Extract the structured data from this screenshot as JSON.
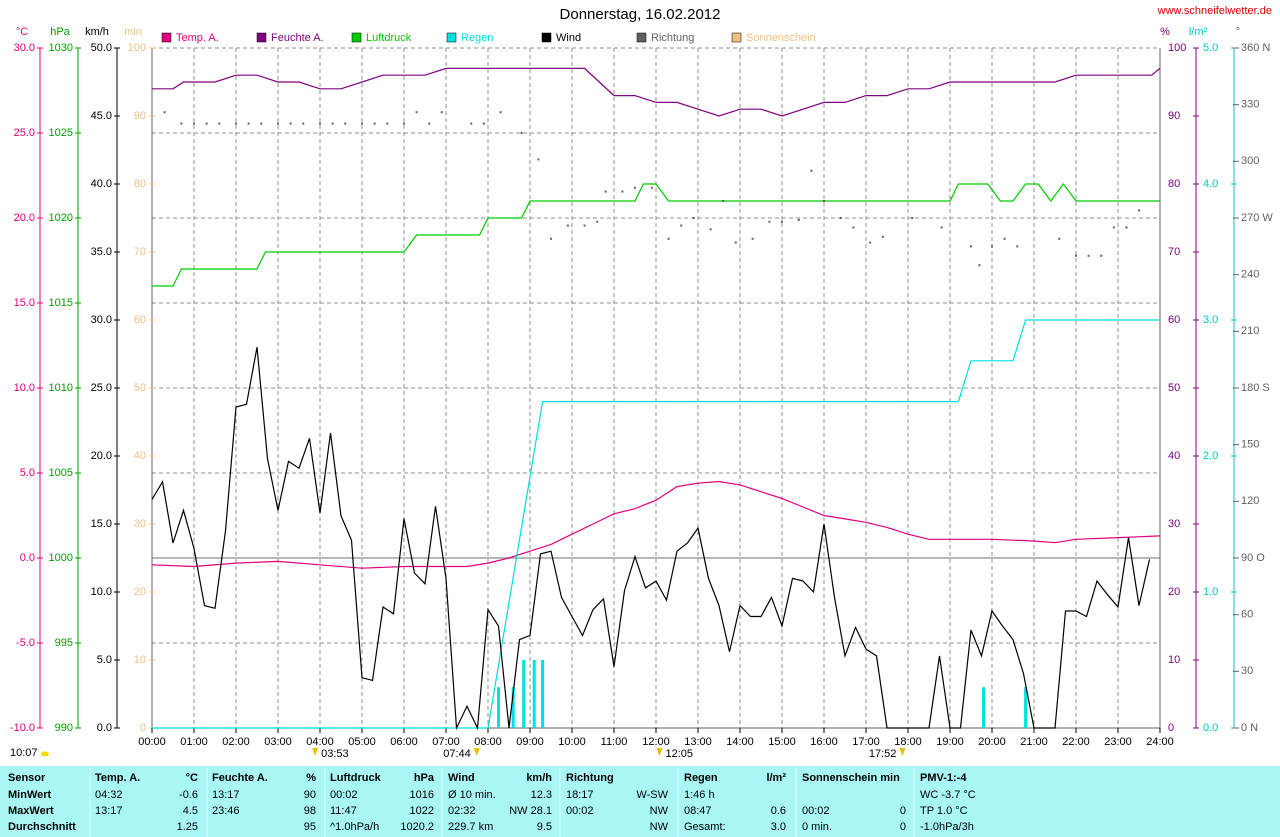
{
  "chart_data": {
    "type": "line",
    "title": "Donnerstag, 16.02.2012",
    "source": "www.schneifelwetter.de",
    "update_time": "10:07",
    "xlim": [
      0,
      24
    ],
    "xticks": [
      {
        "value": 0,
        "label": "00:00"
      },
      {
        "value": 1,
        "label": "01:00"
      },
      {
        "value": 2,
        "label": "02:00"
      },
      {
        "value": 3,
        "label": "03:00"
      },
      {
        "value": 4,
        "label": "04:00"
      },
      {
        "value": 5,
        "label": "05:00"
      },
      {
        "value": 6,
        "label": "06:00"
      },
      {
        "value": 7,
        "label": "07:00"
      },
      {
        "value": 8,
        "label": "08:00"
      },
      {
        "value": 9,
        "label": "09:00"
      },
      {
        "value": 10,
        "label": "10:00"
      },
      {
        "value": 11,
        "label": "11:00"
      },
      {
        "value": 12,
        "label": "12:00"
      },
      {
        "value": 13,
        "label": "13:00"
      },
      {
        "value": 14,
        "label": "14:00"
      },
      {
        "value": 15,
        "label": "15:00"
      },
      {
        "value": 16,
        "label": "16:00"
      },
      {
        "value": 17,
        "label": "17:00"
      },
      {
        "value": 18,
        "label": "18:00"
      },
      {
        "value": 19,
        "label": "19:00"
      },
      {
        "value": 20,
        "label": "20:00"
      },
      {
        "value": 21,
        "label": "21:00"
      },
      {
        "value": 22,
        "label": "22:00"
      },
      {
        "value": 23,
        "label": "23:00"
      },
      {
        "value": 24,
        "label": "24:00"
      }
    ],
    "grid": true,
    "y_axes": [
      {
        "unit": "°C",
        "color": "#e0007f",
        "ylim": [
          -10,
          30
        ],
        "yticks": [
          {
            "value": -10,
            "label": "-10.0"
          },
          {
            "value": -5,
            "label": "-5.0"
          },
          {
            "value": 0,
            "label": "0.0"
          },
          {
            "value": 5,
            "label": "5.0"
          },
          {
            "value": 10,
            "label": "10.0"
          },
          {
            "value": 15,
            "label": "15.0"
          },
          {
            "value": 20,
            "label": "20.0"
          },
          {
            "value": 25,
            "label": "25.0"
          },
          {
            "value": 30,
            "label": "30.0"
          }
        ]
      },
      {
        "unit": "hPa",
        "color": "#00a000",
        "ylim": [
          990,
          1030
        ],
        "yticks": [
          990,
          995,
          1000,
          1005,
          1010,
          1015,
          1020,
          1025,
          1030
        ]
      },
      {
        "unit": "km/h",
        "color": "#000000",
        "ylim": [
          0,
          50
        ],
        "yticks": [
          {
            "value": 0,
            "label": "0.0"
          },
          {
            "value": 5,
            "label": "5.0"
          },
          {
            "value": 10,
            "label": "10.0"
          },
          {
            "value": 15,
            "label": "15.0"
          },
          {
            "value": 20,
            "label": "20.0"
          },
          {
            "value": 25,
            "label": "25.0"
          },
          {
            "value": 30,
            "label": "30.0"
          },
          {
            "value": 35,
            "label": "35.0"
          },
          {
            "value": 40,
            "label": "40.0"
          },
          {
            "value": 45,
            "label": "45.0"
          },
          {
            "value": 50,
            "label": "50.0"
          }
        ]
      },
      {
        "unit": "min",
        "color": "#f0c080",
        "ylim": [
          0,
          100
        ],
        "yticks": [
          0,
          10,
          20,
          30,
          40,
          50,
          60,
          70,
          80,
          90,
          100
        ]
      },
      {
        "unit": "%",
        "color": "#800080",
        "ylim": [
          0,
          100
        ],
        "yticks": [
          0,
          10,
          20,
          30,
          40,
          50,
          60,
          70,
          80,
          90,
          100
        ]
      },
      {
        "unit": "l/m²",
        "color": "#00c8c8",
        "ylim": [
          0,
          5
        ],
        "yticks": [
          {
            "value": 0,
            "label": "0.0"
          },
          {
            "value": 1,
            "label": "1.0"
          },
          {
            "value": 2,
            "label": "2.0"
          },
          {
            "value": 3,
            "label": "3.0"
          },
          {
            "value": 4,
            "label": "4.0"
          },
          {
            "value": 5,
            "label": "5.0"
          }
        ]
      },
      {
        "unit": "°",
        "color": "#606060",
        "ylim": [
          0,
          360
        ],
        "yticks": [
          {
            "value": 0,
            "label": "0  N"
          },
          30,
          60,
          {
            "value": 90,
            "label": "90  O"
          },
          120,
          150,
          {
            "value": 180,
            "label": "180  S"
          },
          210,
          240,
          {
            "value": 270,
            "label": "270  W"
          },
          300,
          330,
          {
            "value": 360,
            "label": "360  N"
          }
        ]
      }
    ],
    "series": [
      {
        "name": "Temp. A.",
        "color": "#e0007f",
        "axis": 0,
        "style": "line",
        "x": [
          0,
          1,
          2,
          3,
          4,
          5,
          6,
          7,
          7.5,
          8,
          8.5,
          9,
          9.5,
          10,
          10.5,
          11,
          11.5,
          12,
          12.5,
          13,
          13.5,
          14,
          14.5,
          15,
          15.5,
          16,
          16.5,
          17,
          17.5,
          18,
          18.5,
          19,
          20,
          21,
          21.5,
          22,
          23,
          24
        ],
        "values": [
          -0.4,
          -0.5,
          -0.3,
          -0.2,
          -0.4,
          -0.6,
          -0.5,
          -0.5,
          -0.5,
          -0.3,
          0.0,
          0.4,
          0.8,
          1.4,
          2.0,
          2.6,
          2.9,
          3.4,
          4.2,
          4.4,
          4.5,
          4.3,
          3.9,
          3.5,
          3.0,
          2.5,
          2.3,
          2.1,
          1.8,
          1.4,
          1.1,
          1.1,
          1.1,
          1.0,
          0.9,
          1.1,
          1.2,
          1.3
        ]
      },
      {
        "name": "Feuchte A.",
        "color": "#800080",
        "axis": 4,
        "style": "line",
        "x": [
          0,
          0.5,
          0.75,
          1,
          1.5,
          2,
          2.5,
          3,
          3.5,
          4,
          4.5,
          5,
          5.5,
          6,
          6.5,
          7,
          8,
          9,
          10,
          10.3,
          11,
          11.5,
          12,
          12.5,
          13,
          13.5,
          14,
          14.5,
          15,
          15.5,
          16,
          16.5,
          17,
          17.5,
          18,
          18.5,
          19,
          20,
          21,
          21.5,
          22,
          23,
          23.8,
          24
        ],
        "values": [
          94,
          94,
          95,
          95,
          95,
          96,
          96,
          95,
          95,
          94,
          94,
          95,
          96,
          96,
          96,
          97,
          97,
          97,
          97,
          97,
          93,
          93,
          92,
          92,
          91,
          90,
          91,
          91,
          90,
          91,
          92,
          92,
          93,
          93,
          94,
          94,
          95,
          95,
          95,
          95,
          96,
          96,
          96,
          97
        ]
      },
      {
        "name": "Luftdruck",
        "color": "#00cc00",
        "axis": 1,
        "style": "line",
        "x": [
          0,
          0.5,
          0.7,
          2.5,
          2.7,
          6,
          6.3,
          7.8,
          8,
          8.8,
          9,
          11.5,
          11.7,
          12,
          12.3,
          19,
          19.2,
          19.9,
          20.2,
          20.5,
          20.8,
          21.1,
          21.4,
          21.7,
          22,
          24
        ],
        "values": [
          1016,
          1016,
          1017,
          1017,
          1018,
          1018,
          1019,
          1019,
          1020,
          1020,
          1021,
          1021,
          1022,
          1022,
          1021,
          1021,
          1022,
          1022,
          1021,
          1021,
          1022,
          1022,
          1021,
          1022,
          1021,
          1021
        ]
      },
      {
        "name": "Regen",
        "color": "#00e0e0",
        "axis": 5,
        "style": "line",
        "x": [
          0,
          8,
          9.3,
          19.2,
          19.5,
          20.5,
          20.8,
          24
        ],
        "values": [
          0,
          0,
          2.4,
          2.4,
          2.7,
          2.7,
          3.0,
          3.0
        ],
        "bar_x": [
          8.25,
          8.6,
          8.85,
          9.1,
          9.3,
          19.8,
          20.8
        ],
        "bar_values": [
          0.3,
          0.3,
          0.5,
          0.5,
          0.5,
          0.3,
          0.3
        ]
      },
      {
        "name": "Wind",
        "color": "#000000",
        "axis": 2,
        "style": "line",
        "x": [
          0,
          0.25,
          0.5,
          0.75,
          1,
          1.25,
          1.5,
          1.75,
          2,
          2.25,
          2.5,
          2.75,
          3,
          3.25,
          3.5,
          3.75,
          4,
          4.25,
          4.5,
          4.75,
          5,
          5.25,
          5.5,
          5.75,
          6,
          6.25,
          6.5,
          6.75,
          7,
          7.25,
          7.5,
          7.75,
          8,
          8.25,
          8.5,
          8.75,
          9,
          9.25,
          9.5,
          9.75,
          10,
          10.25,
          10.5,
          10.75,
          11,
          11.25,
          11.5,
          11.75,
          12,
          12.25,
          12.5,
          12.75,
          13,
          13.25,
          13.5,
          13.75,
          14,
          14.25,
          14.5,
          14.75,
          15,
          15.25,
          15.5,
          15.75,
          16,
          16.25,
          16.5,
          16.75,
          17,
          17.25,
          17.5,
          18,
          18.5,
          18.75,
          19,
          19.25,
          19.5,
          19.75,
          20,
          20.25,
          20.5,
          20.75,
          21,
          21.5,
          21.75,
          22,
          22.25,
          22.5,
          22.75,
          23,
          23.25,
          23.5,
          23.75
        ],
        "values": [
          16.8,
          18.1,
          13.6,
          16.0,
          13.2,
          9.0,
          8.8,
          14.5,
          23.6,
          23.8,
          28.0,
          19.8,
          16.0,
          19.6,
          19.1,
          21.3,
          15.8,
          21.7,
          15.6,
          13.8,
          3.7,
          3.5,
          8.9,
          8.4,
          15.4,
          11.4,
          10.6,
          16.3,
          11.0,
          0,
          1.6,
          0,
          8.7,
          7.5,
          0,
          6.5,
          6.8,
          12.8,
          13.0,
          9.6,
          8.2,
          6.8,
          8.7,
          9.5,
          4.5,
          10.1,
          12.6,
          10.3,
          10.8,
          9.4,
          13.0,
          13.6,
          14.7,
          11.0,
          9.0,
          5.6,
          9.0,
          8.2,
          8.2,
          9.6,
          7.5,
          11.0,
          10.8,
          10.0,
          15.0,
          9.6,
          5.3,
          7.4,
          5.8,
          5.3,
          0,
          0,
          0,
          5.3,
          0,
          0,
          7.2,
          5.3,
          8.6,
          7.5,
          6.5,
          4.0,
          0,
          0,
          8.6,
          8.6,
          8.2,
          10.8,
          9.8,
          8.9,
          14.0,
          9.0,
          12.4
        ]
      },
      {
        "name": "Richtung",
        "color": "#606060",
        "axis": 6,
        "style": "dots",
        "x": [
          0.3,
          0.7,
          1.0,
          1.3,
          1.6,
          2.0,
          2.3,
          2.6,
          3.0,
          3.3,
          3.6,
          4.0,
          4.3,
          4.6,
          5.0,
          5.3,
          5.6,
          6.0,
          6.3,
          6.6,
          6.9,
          7.6,
          7.9,
          8.3,
          8.8,
          9.2,
          9.5,
          9.9,
          10.3,
          10.6,
          10.8,
          11.2,
          11.5,
          11.9,
          12.3,
          12.6,
          12.9,
          13.3,
          13.6,
          13.9,
          14.3,
          14.7,
          15.0,
          15.4,
          15.7,
          16.0,
          16.4,
          16.7,
          17.1,
          17.4,
          18.1,
          18.8,
          19.5,
          19.7,
          20.0,
          20.3,
          20.6,
          21.6,
          22.0,
          22.3,
          22.6,
          22.9,
          23.2,
          23.5
        ],
        "values": [
          326,
          320,
          320,
          320,
          320,
          320,
          320,
          320,
          320,
          320,
          320,
          320,
          320,
          320,
          320,
          320,
          320,
          320,
          326,
          320,
          326,
          320,
          320,
          326,
          315,
          301,
          259,
          266,
          266,
          268,
          284,
          284,
          286,
          286,
          259,
          266,
          270,
          264,
          279,
          257,
          259,
          268,
          268,
          269,
          295,
          279,
          270,
          265,
          257,
          260,
          270,
          265,
          255,
          245,
          255,
          259,
          255,
          259,
          250,
          250,
          250,
          265,
          265,
          274
        ]
      },
      {
        "name": "Sonnenschein",
        "color": "#f0c080",
        "axis": 3,
        "style": "line",
        "x": [],
        "values": []
      }
    ],
    "annotations": [
      {
        "x": 3.883,
        "label": "03:53"
      },
      {
        "x": 7.733,
        "label": "07:44"
      },
      {
        "x": 12.083,
        "label": "12:05"
      },
      {
        "x": 17.867,
        "label": "17:52"
      }
    ]
  },
  "summary_table": {
    "header": [
      {
        "l": "Sensor"
      },
      {
        "l": "Temp. A.",
        "r": "°C"
      },
      {
        "l": "Feuchte A.",
        "r": "%"
      },
      {
        "l": "Luftdruck",
        "r": "hPa"
      },
      {
        "l": "Wind",
        "r": "km/h"
      },
      {
        "l": "Richtung"
      },
      {
        "l": "Regen",
        "r": "l/m²"
      },
      {
        "l": "Sonnenschein min"
      },
      {
        "l": "PMV-1:-4"
      }
    ],
    "rows": [
      [
        {
          "l": "MinWert"
        },
        {
          "l": "04:32",
          "r": "-0.6"
        },
        {
          "l": "13:17",
          "r": "90"
        },
        {
          "l": "00:02",
          "r": "1016"
        },
        {
          "l": "Ø 10 min.",
          "r": "12.3"
        },
        {
          "l": "18:17",
          "r": "W-SW"
        },
        {
          "l": "1:46 h"
        },
        {},
        {
          "l": "WC -3.7 °C"
        }
      ],
      [
        {
          "l": "MaxWert"
        },
        {
          "l": "13:17",
          "r": "4.5"
        },
        {
          "l": "23:46",
          "r": "98"
        },
        {
          "l": "11:47",
          "r": "1022"
        },
        {
          "l": "02:32",
          "r": "NW 28.1"
        },
        {
          "l": "00:02",
          "r": "NW"
        },
        {
          "l": "08:47",
          "r": "0.6"
        },
        {
          "l": "00:02",
          "r": "0"
        },
        {
          "l": "TP 1.0 °C"
        }
      ],
      [
        {
          "l": "Durchschnitt"
        },
        {
          "r": "1.25"
        },
        {
          "r": "95"
        },
        {
          "l": "^1.0hPa/h",
          "r": "1020.2"
        },
        {
          "l": "229.7 km",
          "r": "9.5"
        },
        {
          "r": "NW"
        },
        {
          "l": "Gesamt:",
          "r": "3.0"
        },
        {
          "l": "0 min.",
          "r": "0"
        },
        {
          "l": "-1.0hPa/3h"
        }
      ]
    ]
  }
}
